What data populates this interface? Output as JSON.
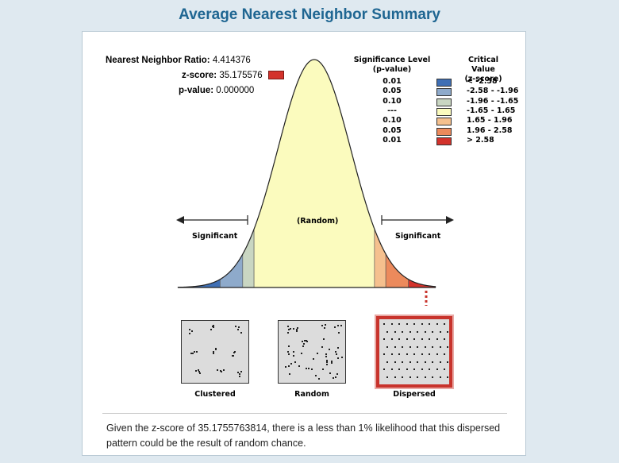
{
  "title": "Average Nearest Neighbor Summary",
  "stats": {
    "ratio_label": "Nearest Neighbor Ratio:",
    "ratio_value": "4.414376",
    "z_label": "z-score:",
    "z_value": "35.175576",
    "p_label": "p-value:",
    "p_value": "0.000000"
  },
  "legend": {
    "sig_header_1": "Significance Level",
    "sig_header_2": "(p-value)",
    "crit_header_1": "Critical Value",
    "crit_header_2": "(z-score)",
    "rows": [
      {
        "p": "0.01",
        "z": "< -2.58",
        "color": "#3f6fb5"
      },
      {
        "p": "0.05",
        "z": "-2.58 - -1.96",
        "color": "#8eaacb"
      },
      {
        "p": "0.10",
        "z": "-1.96 - -1.65",
        "color": "#c9d6c2"
      },
      {
        "p": "---",
        "z": "-1.65 - 1.65",
        "color": "#fbfbbe"
      },
      {
        "p": "0.10",
        "z": "1.65 - 1.96",
        "color": "#f5c08e"
      },
      {
        "p": "0.05",
        "z": "1.96 - 2.58",
        "color": "#ec8a5c"
      },
      {
        "p": "0.01",
        "z": "> 2.58",
        "color": "#d3322b"
      }
    ]
  },
  "curve": {
    "center_label": "(Random)",
    "left_label": "Significant",
    "right_label": "Significant"
  },
  "patterns": {
    "clustered": "Clustered",
    "random": "Random",
    "dispersed": "Dispersed"
  },
  "conclusion": "Given the z-score of 35.1755763814, there is a less than 1% likelihood that this dispersed pattern could be the result of random chance."
}
